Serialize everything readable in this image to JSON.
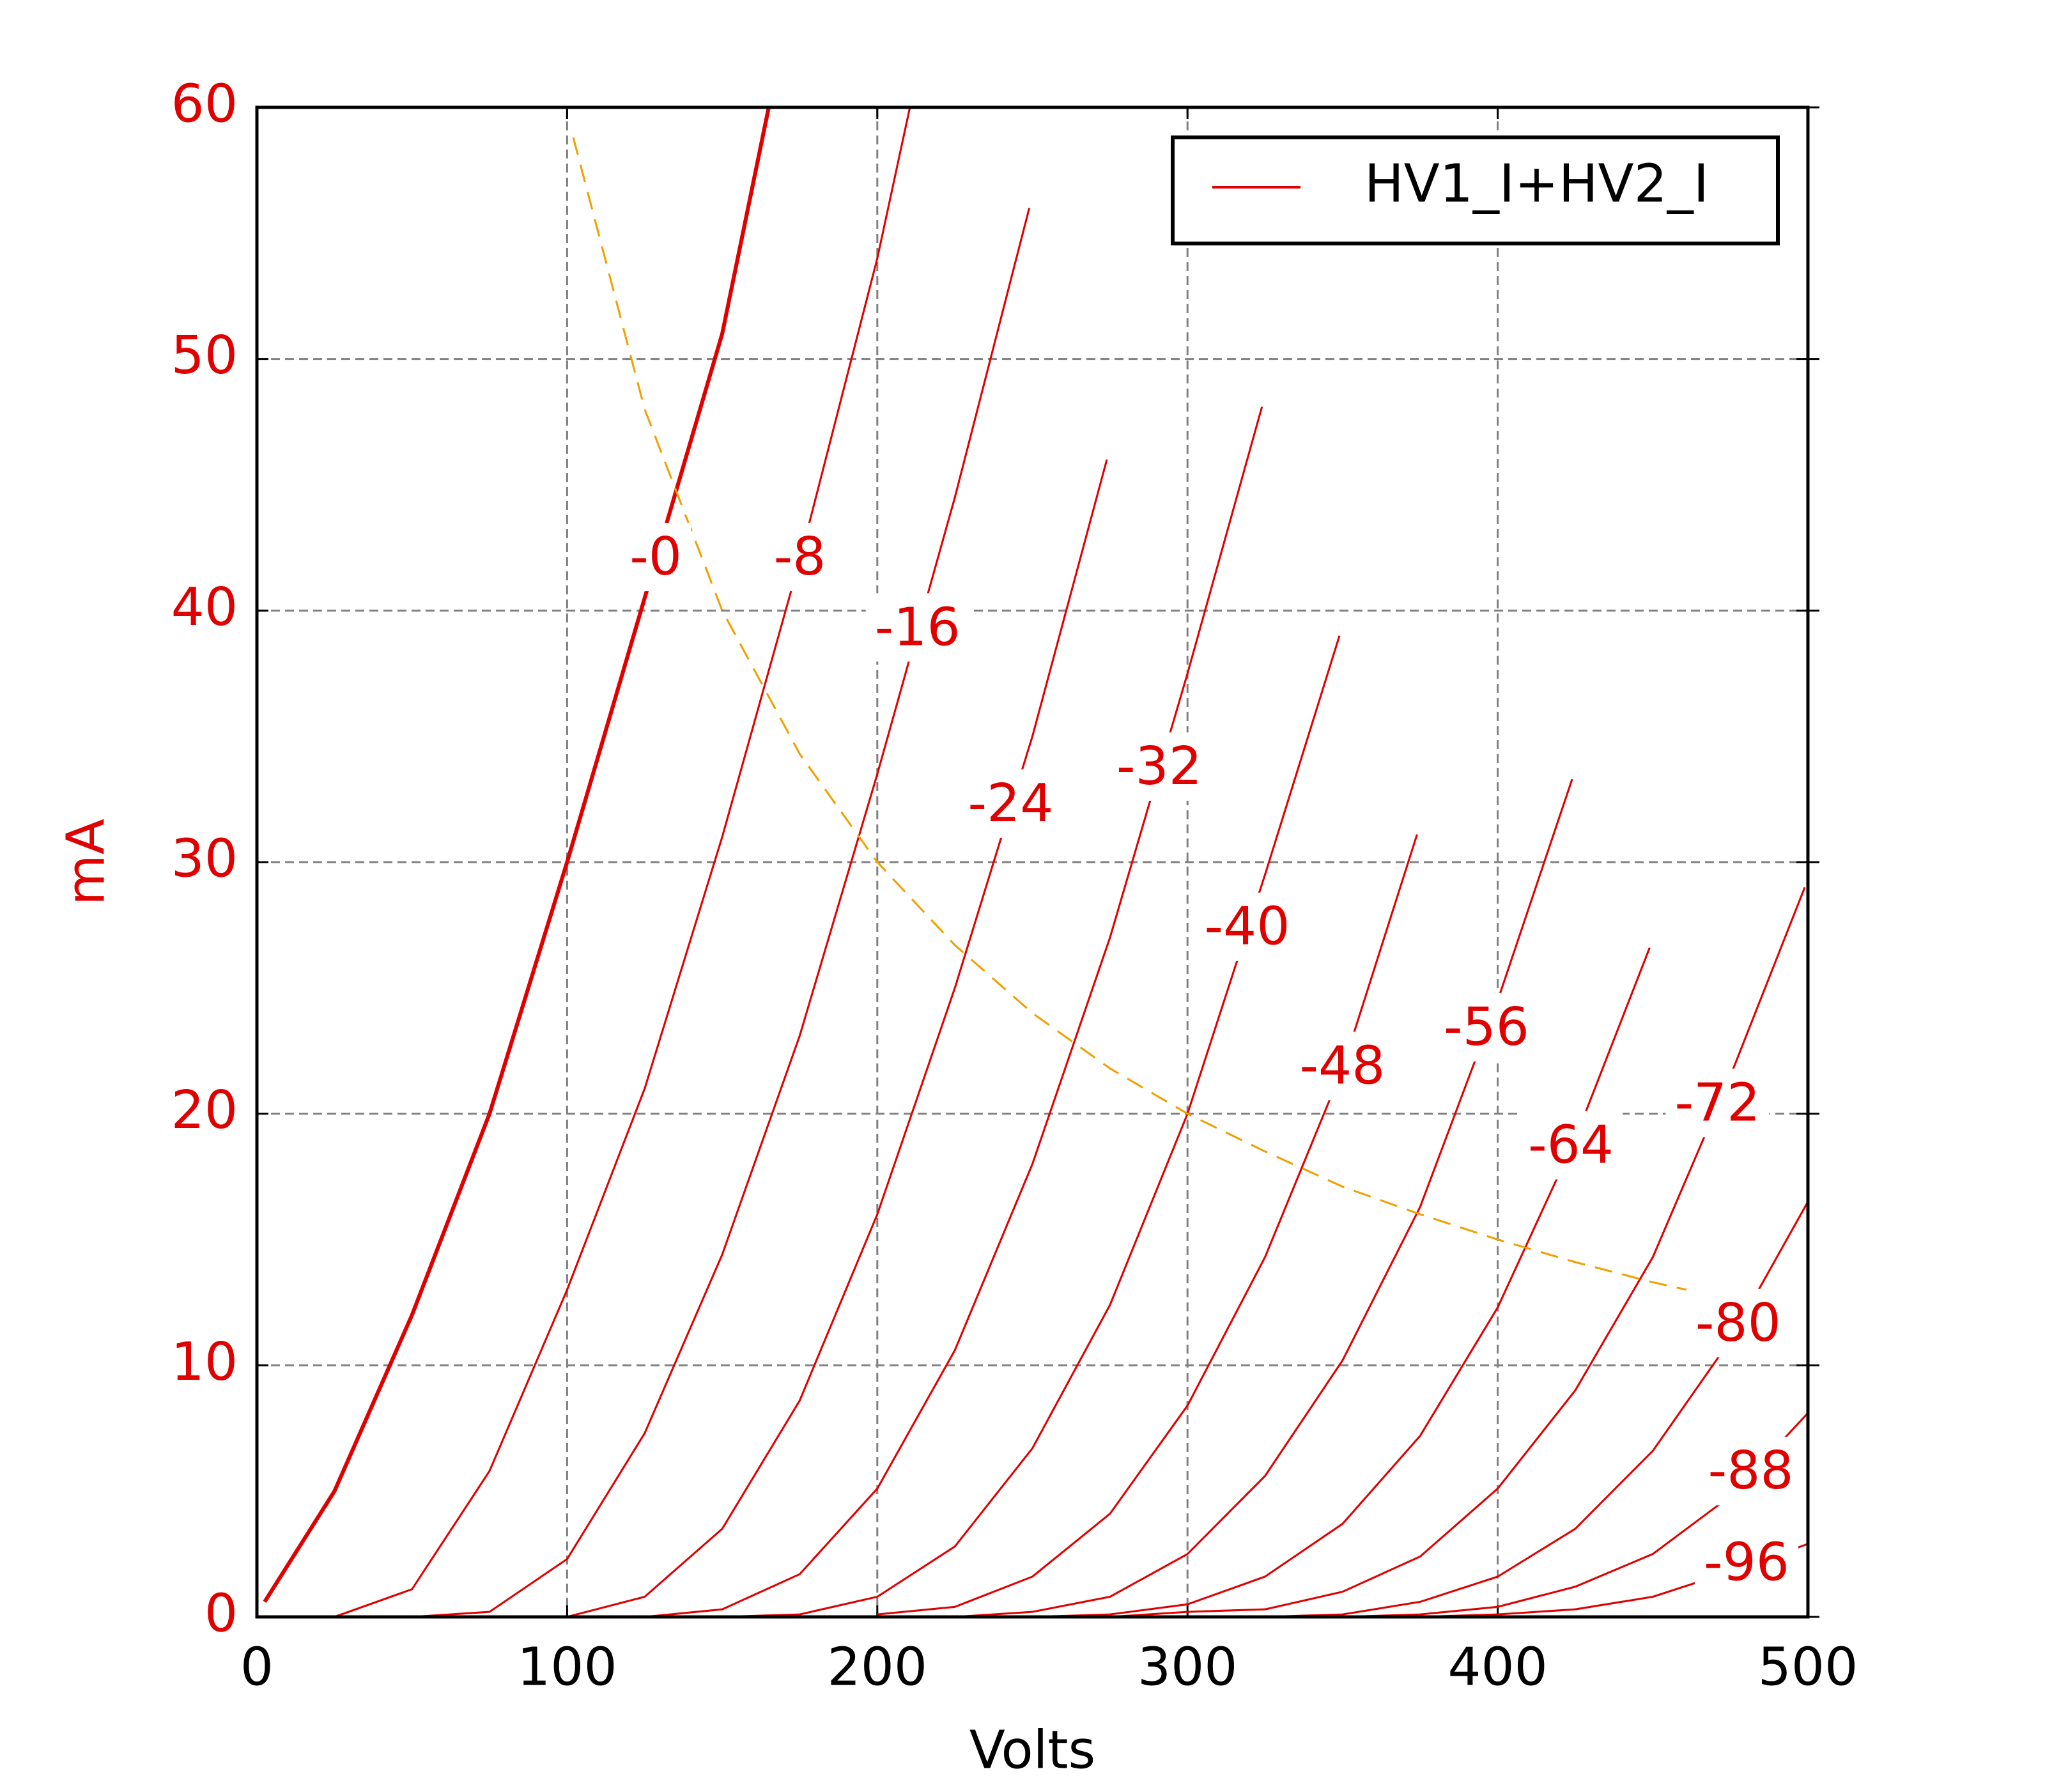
{
  "chart_data": {
    "type": "line",
    "x_label": "Volts",
    "y_label": "mA",
    "y_label_color": "#e00000",
    "ytick_color": "#e00000",
    "xlim": [
      0,
      500
    ],
    "ylim": [
      0,
      60
    ],
    "xticks": [
      0,
      100,
      200,
      300,
      400,
      500
    ],
    "yticks": [
      0,
      10,
      20,
      30,
      40,
      50,
      60
    ],
    "grid": true,
    "legend": {
      "position": "upper right",
      "entries": [
        {
          "label": "HV1_I+HV2_I",
          "color": "#e00000"
        }
      ]
    },
    "series": [
      {
        "label": "-0",
        "color": "#e00000",
        "width": 3,
        "x": [
          2.5,
          25,
          50,
          75,
          100,
          125,
          150,
          165
        ],
        "values": [
          0.6,
          5,
          12,
          20,
          30,
          40.5,
          51,
          60
        ]
      },
      {
        "label": "-8",
        "color": "#e00000",
        "width": 1.5,
        "x": [
          25,
          50,
          75,
          100,
          125,
          150,
          175,
          200,
          210.5
        ],
        "values": [
          0,
          1.1,
          5.8,
          13,
          21,
          31,
          42,
          54,
          60
        ]
      },
      {
        "label": "-16",
        "color": "#e00000",
        "width": 1.5,
        "x": [
          50,
          75,
          100,
          125,
          150,
          175,
          200,
          225,
          249
        ],
        "values": [
          0,
          0.2,
          2.3,
          7.3,
          14.4,
          23.1,
          33.5,
          44.5,
          56
        ]
      },
      {
        "label": "-24",
        "color": "#e00000",
        "width": 1.5,
        "x": [
          100,
          125,
          150,
          175,
          200,
          225,
          250,
          274
        ],
        "values": [
          0,
          0.8,
          3.5,
          8.6,
          16,
          25,
          35,
          46
        ]
      },
      {
        "label": "-32",
        "color": "#e00000",
        "width": 1.5,
        "x": [
          125,
          150,
          175,
          200,
          225,
          250,
          275,
          300,
          324
        ],
        "values": [
          0,
          0.3,
          1.7,
          5.1,
          10.6,
          18,
          27,
          37.5,
          48.1
        ]
      },
      {
        "label": "-40",
        "color": "#e00000",
        "width": 1.5,
        "x": [
          150,
          175,
          200,
          225,
          250,
          275,
          300,
          325,
          349
        ],
        "values": [
          0,
          0.1,
          0.8,
          2.8,
          6.7,
          12.4,
          20,
          29.5,
          39
        ]
      },
      {
        "label": "-48",
        "color": "#e00000",
        "width": 1.5,
        "x": [
          200,
          225,
          250,
          275,
          300,
          325,
          350,
          374
        ],
        "values": [
          0.1,
          0.4,
          1.6,
          4.1,
          8.4,
          14.3,
          21.8,
          31.1
        ]
      },
      {
        "label": "-56",
        "color": "#e00000",
        "width": 1.5,
        "x": [
          225,
          250,
          275,
          300,
          325,
          350,
          375,
          400,
          424
        ],
        "values": [
          0,
          0.2,
          0.8,
          2.5,
          5.6,
          10.2,
          16.3,
          24.5,
          33.3
        ]
      },
      {
        "label": "-64",
        "color": "#e00000",
        "width": 1.5,
        "x": [
          250,
          275,
          300,
          325,
          350,
          375,
          400,
          425,
          449
        ],
        "values": [
          0,
          0.1,
          0.5,
          1.6,
          3.7,
          7.2,
          12.3,
          19,
          26.6
        ]
      },
      {
        "label": "-72",
        "color": "#e00000",
        "width": 1.5,
        "x": [
          275,
          300,
          325,
          350,
          375,
          400,
          425,
          450,
          475,
          499
        ],
        "values": [
          0,
          0.2,
          0.3,
          1,
          2.4,
          5.1,
          9,
          14.3,
          21.5,
          29
        ]
      },
      {
        "label": "-80",
        "color": "#e00000",
        "width": 1.5,
        "x": [
          325,
          350,
          375,
          400,
          425,
          450,
          475,
          500
        ],
        "values": [
          0,
          0.1,
          0.6,
          1.6,
          3.5,
          6.6,
          11,
          16.5
        ]
      },
      {
        "label": "-88",
        "color": "#e00000",
        "width": 1.5,
        "x": [
          350,
          375,
          400,
          425,
          450,
          475,
          500
        ],
        "values": [
          0,
          0.1,
          0.4,
          1.2,
          2.5,
          4.8,
          8.1
        ]
      },
      {
        "label": "-96",
        "color": "#e00000",
        "width": 1.5,
        "x": [
          375,
          400,
          425,
          450,
          475,
          500
        ],
        "values": [
          0,
          0.1,
          0.3,
          0.8,
          1.8,
          2.9
        ]
      },
      {
        "color": "#f0a000",
        "width": 1.5,
        "dashed": true,
        "x": [
          102,
          125,
          150,
          175,
          200,
          225,
          250,
          275,
          300,
          325,
          350,
          375,
          400,
          425,
          450,
          483
        ],
        "values": [
          58.8,
          48,
          40,
          34.3,
          30,
          26.7,
          24,
          21.8,
          20,
          18.5,
          17.1,
          16,
          15,
          14.1,
          13.3,
          12.4
        ]
      }
    ]
  }
}
